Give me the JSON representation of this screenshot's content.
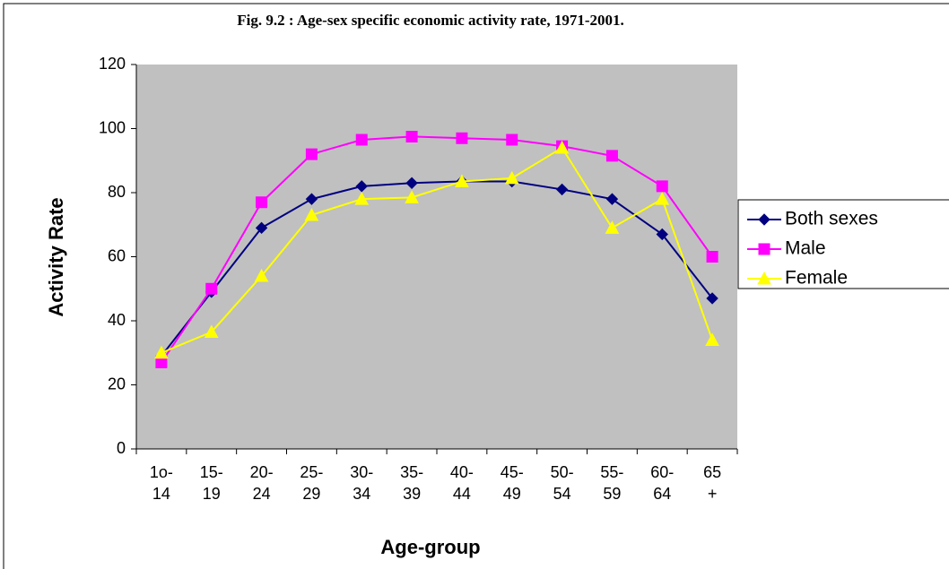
{
  "chart_data": {
    "type": "line",
    "title": "Fig. 9.2 :  Age-sex specific economic activity rate, 1971-2001.",
    "x_label": "Age-group",
    "y_label": "Activity Rate",
    "categories": [
      "1o-\n14",
      "15-\n19",
      "20-\n24",
      "25-\n29",
      "30-\n34",
      "35-\n39",
      "40-\n44",
      "45-\n49",
      "50-\n54",
      "55-\n59",
      "60-\n64",
      "65\n+"
    ],
    "series": [
      {
        "name": "Both sexes",
        "color": "#000080",
        "marker": "diamond",
        "values": [
          29,
          49,
          69,
          78,
          82,
          83,
          83.5,
          83.5,
          81,
          78,
          67,
          47
        ]
      },
      {
        "name": "Male",
        "color": "#FF00FF",
        "marker": "square",
        "values": [
          27,
          50,
          77,
          92,
          96.5,
          97.5,
          97,
          96.5,
          94.5,
          91.5,
          82,
          60
        ]
      },
      {
        "name": "Female",
        "color": "#FFFF00",
        "marker": "triangle",
        "values": [
          30,
          36.5,
          54,
          73,
          78,
          78.5,
          83.5,
          84.5,
          94,
          69,
          78,
          34
        ]
      }
    ],
    "ylim": [
      0,
      120
    ],
    "yticks": [
      0,
      20,
      40,
      60,
      80,
      100,
      120
    ],
    "grid": false,
    "plot_background": "#C0C0C0",
    "legend": "right"
  }
}
